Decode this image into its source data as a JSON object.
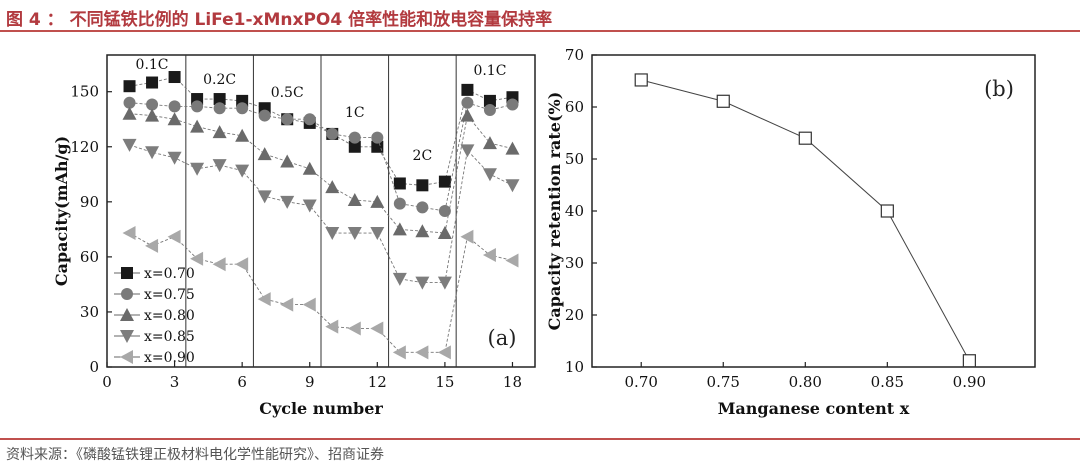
{
  "header": {
    "title": "图 4 ： 不同锰铁比例的 LiFe1-xMnxPO4 倍率性能和放电容量保持率"
  },
  "source": {
    "text": "资料来源：《磷酸锰铁锂正极材料电化学性能研究》、招商证券"
  },
  "chart_data": [
    {
      "type": "scatter",
      "panel_label": "(a)",
      "xlabel": "Cycle number",
      "ylabel": "Capacity(mAh/g)",
      "xlim": [
        0,
        19
      ],
      "ylim": [
        0,
        170
      ],
      "xticks": [
        0,
        3,
        6,
        9,
        12,
        15,
        18
      ],
      "yticks": [
        0,
        30,
        60,
        90,
        120,
        150
      ],
      "rate_labels": [
        "0.1C",
        "0.2C",
        "0.5C",
        "1C",
        "2C",
        "0.1C"
      ],
      "x": [
        1,
        2,
        3,
        4,
        5,
        6,
        7,
        8,
        9,
        10,
        11,
        12,
        13,
        14,
        15,
        16,
        17,
        18
      ],
      "series": [
        {
          "name": "x=0.70",
          "values": [
            153,
            155,
            158,
            146,
            146,
            145,
            141,
            135,
            133,
            127,
            120,
            120,
            100,
            99,
            101,
            151,
            145,
            147
          ]
        },
        {
          "name": "x=0.75",
          "values": [
            144,
            143,
            142,
            142,
            141,
            141,
            137,
            135,
            135,
            127,
            125,
            125,
            89,
            87,
            85,
            144,
            140,
            143
          ]
        },
        {
          "name": "x=0.80",
          "values": [
            138,
            137,
            135,
            131,
            128,
            126,
            116,
            112,
            108,
            98,
            91,
            90,
            75,
            74,
            73,
            137,
            122,
            119
          ]
        },
        {
          "name": "x=0.85",
          "values": [
            121,
            117,
            114,
            108,
            110,
            107,
            93,
            90,
            88,
            73,
            73,
            73,
            48,
            46,
            46,
            118,
            105,
            99
          ]
        },
        {
          "name": "x=0.90",
          "values": [
            73,
            66,
            71,
            59,
            56,
            56,
            37,
            34,
            34,
            22,
            21,
            21,
            8,
            8,
            8,
            71,
            61,
            58
          ]
        }
      ]
    },
    {
      "type": "line",
      "panel_label": "(b)",
      "xlabel": "Manganese content x",
      "ylabel": "Capacity retention rate(%)",
      "xlim": [
        0.67,
        0.94
      ],
      "ylim": [
        10,
        70
      ],
      "x": [
        0.7,
        0.75,
        0.8,
        0.85,
        0.9
      ],
      "xtick_labels": [
        "0.70",
        "0.75",
        "0.80",
        "0.85",
        "0.90"
      ],
      "yticks": [
        10,
        20,
        30,
        40,
        50,
        60,
        70
      ],
      "values": [
        65.2,
        61.1,
        54.0,
        40.0,
        11.2
      ]
    }
  ]
}
